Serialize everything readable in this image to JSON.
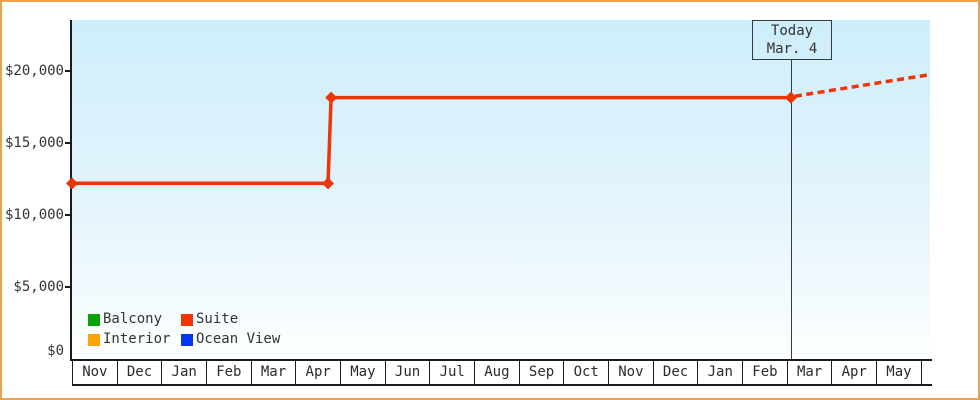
{
  "frame": {
    "border_color": "#eba24c",
    "background": "#ffffff"
  },
  "today_box": {
    "line1": "Today",
    "line2": "Mar. 4"
  },
  "y_axis": {
    "tick_labels": [
      {
        "label": "$20,000",
        "value": 20000
      },
      {
        "label": "$15,000",
        "value": 15000
      },
      {
        "label": "$10,000",
        "value": 10000
      },
      {
        "label": "$5,000",
        "value": 5000
      },
      {
        "label": "$0",
        "value": 0
      }
    ]
  },
  "x_axis": {
    "months": [
      "Nov",
      "Dec",
      "Jan",
      "Feb",
      "Mar",
      "Apr",
      "May",
      "Jun",
      "Jul",
      "Aug",
      "Sep",
      "Oct",
      "Nov",
      "Dec",
      "Jan",
      "Feb",
      "Mar",
      "Apr",
      "May",
      ""
    ]
  },
  "legend": {
    "items": [
      {
        "label": "Balcony",
        "color": "#07a307"
      },
      {
        "label": "Suite",
        "color": "#f23405"
      },
      {
        "label": "Interior",
        "color": "#ffa303"
      },
      {
        "label": "Ocean View",
        "color": "#0636f0"
      }
    ]
  },
  "chart_data": {
    "type": "line",
    "x_tick_labels": [
      "Nov",
      "Dec",
      "Jan",
      "Feb",
      "Mar",
      "Apr",
      "May",
      "Jun",
      "Jul",
      "Aug",
      "Sep",
      "Oct",
      "Nov",
      "Dec",
      "Jan",
      "Feb",
      "Mar",
      "Apr",
      "May"
    ],
    "y_tick_labels": [
      "$0",
      "$5,000",
      "$10,000",
      "$15,000",
      "$20,000"
    ],
    "y_ticks": [
      0,
      5000,
      10000,
      15000,
      20000
    ],
    "ylim": [
      0,
      23500
    ],
    "grid": false,
    "legend_position": "inside-bottom-left",
    "legend_entries": [
      "Balcony",
      "Suite",
      "Interior",
      "Ocean View"
    ],
    "annotation": {
      "label": "Today Mar. 4",
      "x_month_index": 16.09
    },
    "series": [
      {
        "name": "Suite",
        "color": "#f23405",
        "line_style": "solid",
        "markers": "diamond",
        "points": [
          {
            "x_month_index": 0.0,
            "x_label": "early Nov",
            "value": 12200
          },
          {
            "x_month_index": 5.73,
            "x_label": "late Apr",
            "value": 12200
          },
          {
            "x_month_index": 5.8,
            "x_label": "late Apr",
            "value": 18150
          },
          {
            "x_month_index": 16.09,
            "x_label": "Mar 4 (today)",
            "value": 18150
          }
        ]
      },
      {
        "name": "Suite (projected)",
        "color": "#f23405",
        "line_style": "dashed",
        "markers": "none",
        "points": [
          {
            "x_month_index": 16.18,
            "x_label": "Mar 4 (today)",
            "value": 18250
          },
          {
            "x_month_index": 19.2,
            "x_label": "beyond May",
            "value": 19750
          }
        ]
      }
    ]
  }
}
